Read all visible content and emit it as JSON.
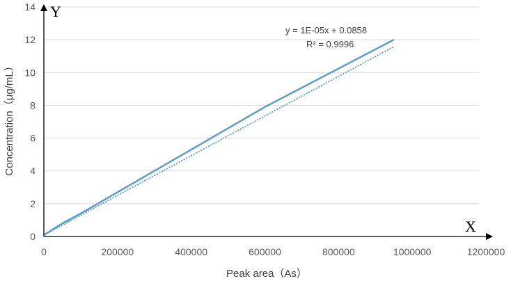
{
  "chart_data": {
    "type": "line",
    "title": "",
    "xlabel": "Peak area（As）",
    "ylabel": "Concentration（μg/mL）",
    "x_axis_letter": "X",
    "y_axis_letter": "Y",
    "xlim": [
      0,
      1200000
    ],
    "ylim": [
      0,
      14
    ],
    "x_ticks": [
      0,
      200000,
      400000,
      600000,
      800000,
      1000000,
      1200000
    ],
    "y_ticks": [
      0,
      2,
      4,
      6,
      8,
      10,
      12,
      14
    ],
    "x_tick_labels": [
      "0",
      "200000",
      "400000",
      "600000",
      "800000",
      "1000000",
      "1200000"
    ],
    "y_tick_labels": [
      "0",
      "2",
      "4",
      "6",
      "8",
      "10",
      "12",
      "14"
    ],
    "grid": "horizontal",
    "series": [
      {
        "x": [
          0,
          15000,
          50000,
          100000,
          300000,
          600000,
          950000
        ],
        "y": [
          0.1,
          0.3,
          0.8,
          1.4,
          4.0,
          7.9,
          12.0
        ],
        "color": "#5b9bd5",
        "style": "solid"
      }
    ],
    "trendline": {
      "x": [
        0,
        950000
      ],
      "y": [
        0.0858,
        11.5858
      ],
      "color": "#5b9bd5",
      "style": "dotted"
    },
    "annotations": {
      "equation": "y = 1E-05x + 0.0858",
      "r_squared": "R² = 0.9996"
    }
  }
}
